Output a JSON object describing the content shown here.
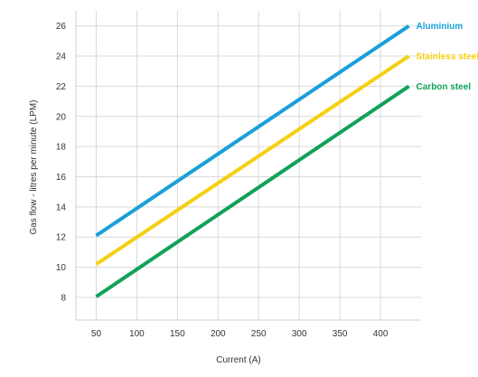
{
  "chart_data": {
    "type": "line",
    "title": "",
    "xlabel": "Current (A)",
    "ylabel": "Gas flow - litres per minute (LPM)",
    "x_ticks": [
      50,
      100,
      150,
      200,
      250,
      300,
      350,
      400
    ],
    "y_ticks": [
      8,
      10,
      12,
      14,
      16,
      18,
      20,
      22,
      24,
      26
    ],
    "xlim": [
      25,
      450
    ],
    "ylim": [
      6.5,
      27
    ],
    "grid": true,
    "legend": "right-inline",
    "series": [
      {
        "name": "Aluminium",
        "color": "#1b9fd8",
        "points": [
          [
            50,
            12.1
          ],
          [
            435,
            26
          ]
        ]
      },
      {
        "name": "Stainless steel",
        "color": "#f5cf12",
        "points": [
          [
            50,
            10.2
          ],
          [
            435,
            24
          ]
        ]
      },
      {
        "name": "Carbon steel",
        "color": "#11a159",
        "points": [
          [
            50,
            8.05
          ],
          [
            435,
            22
          ]
        ]
      }
    ]
  }
}
